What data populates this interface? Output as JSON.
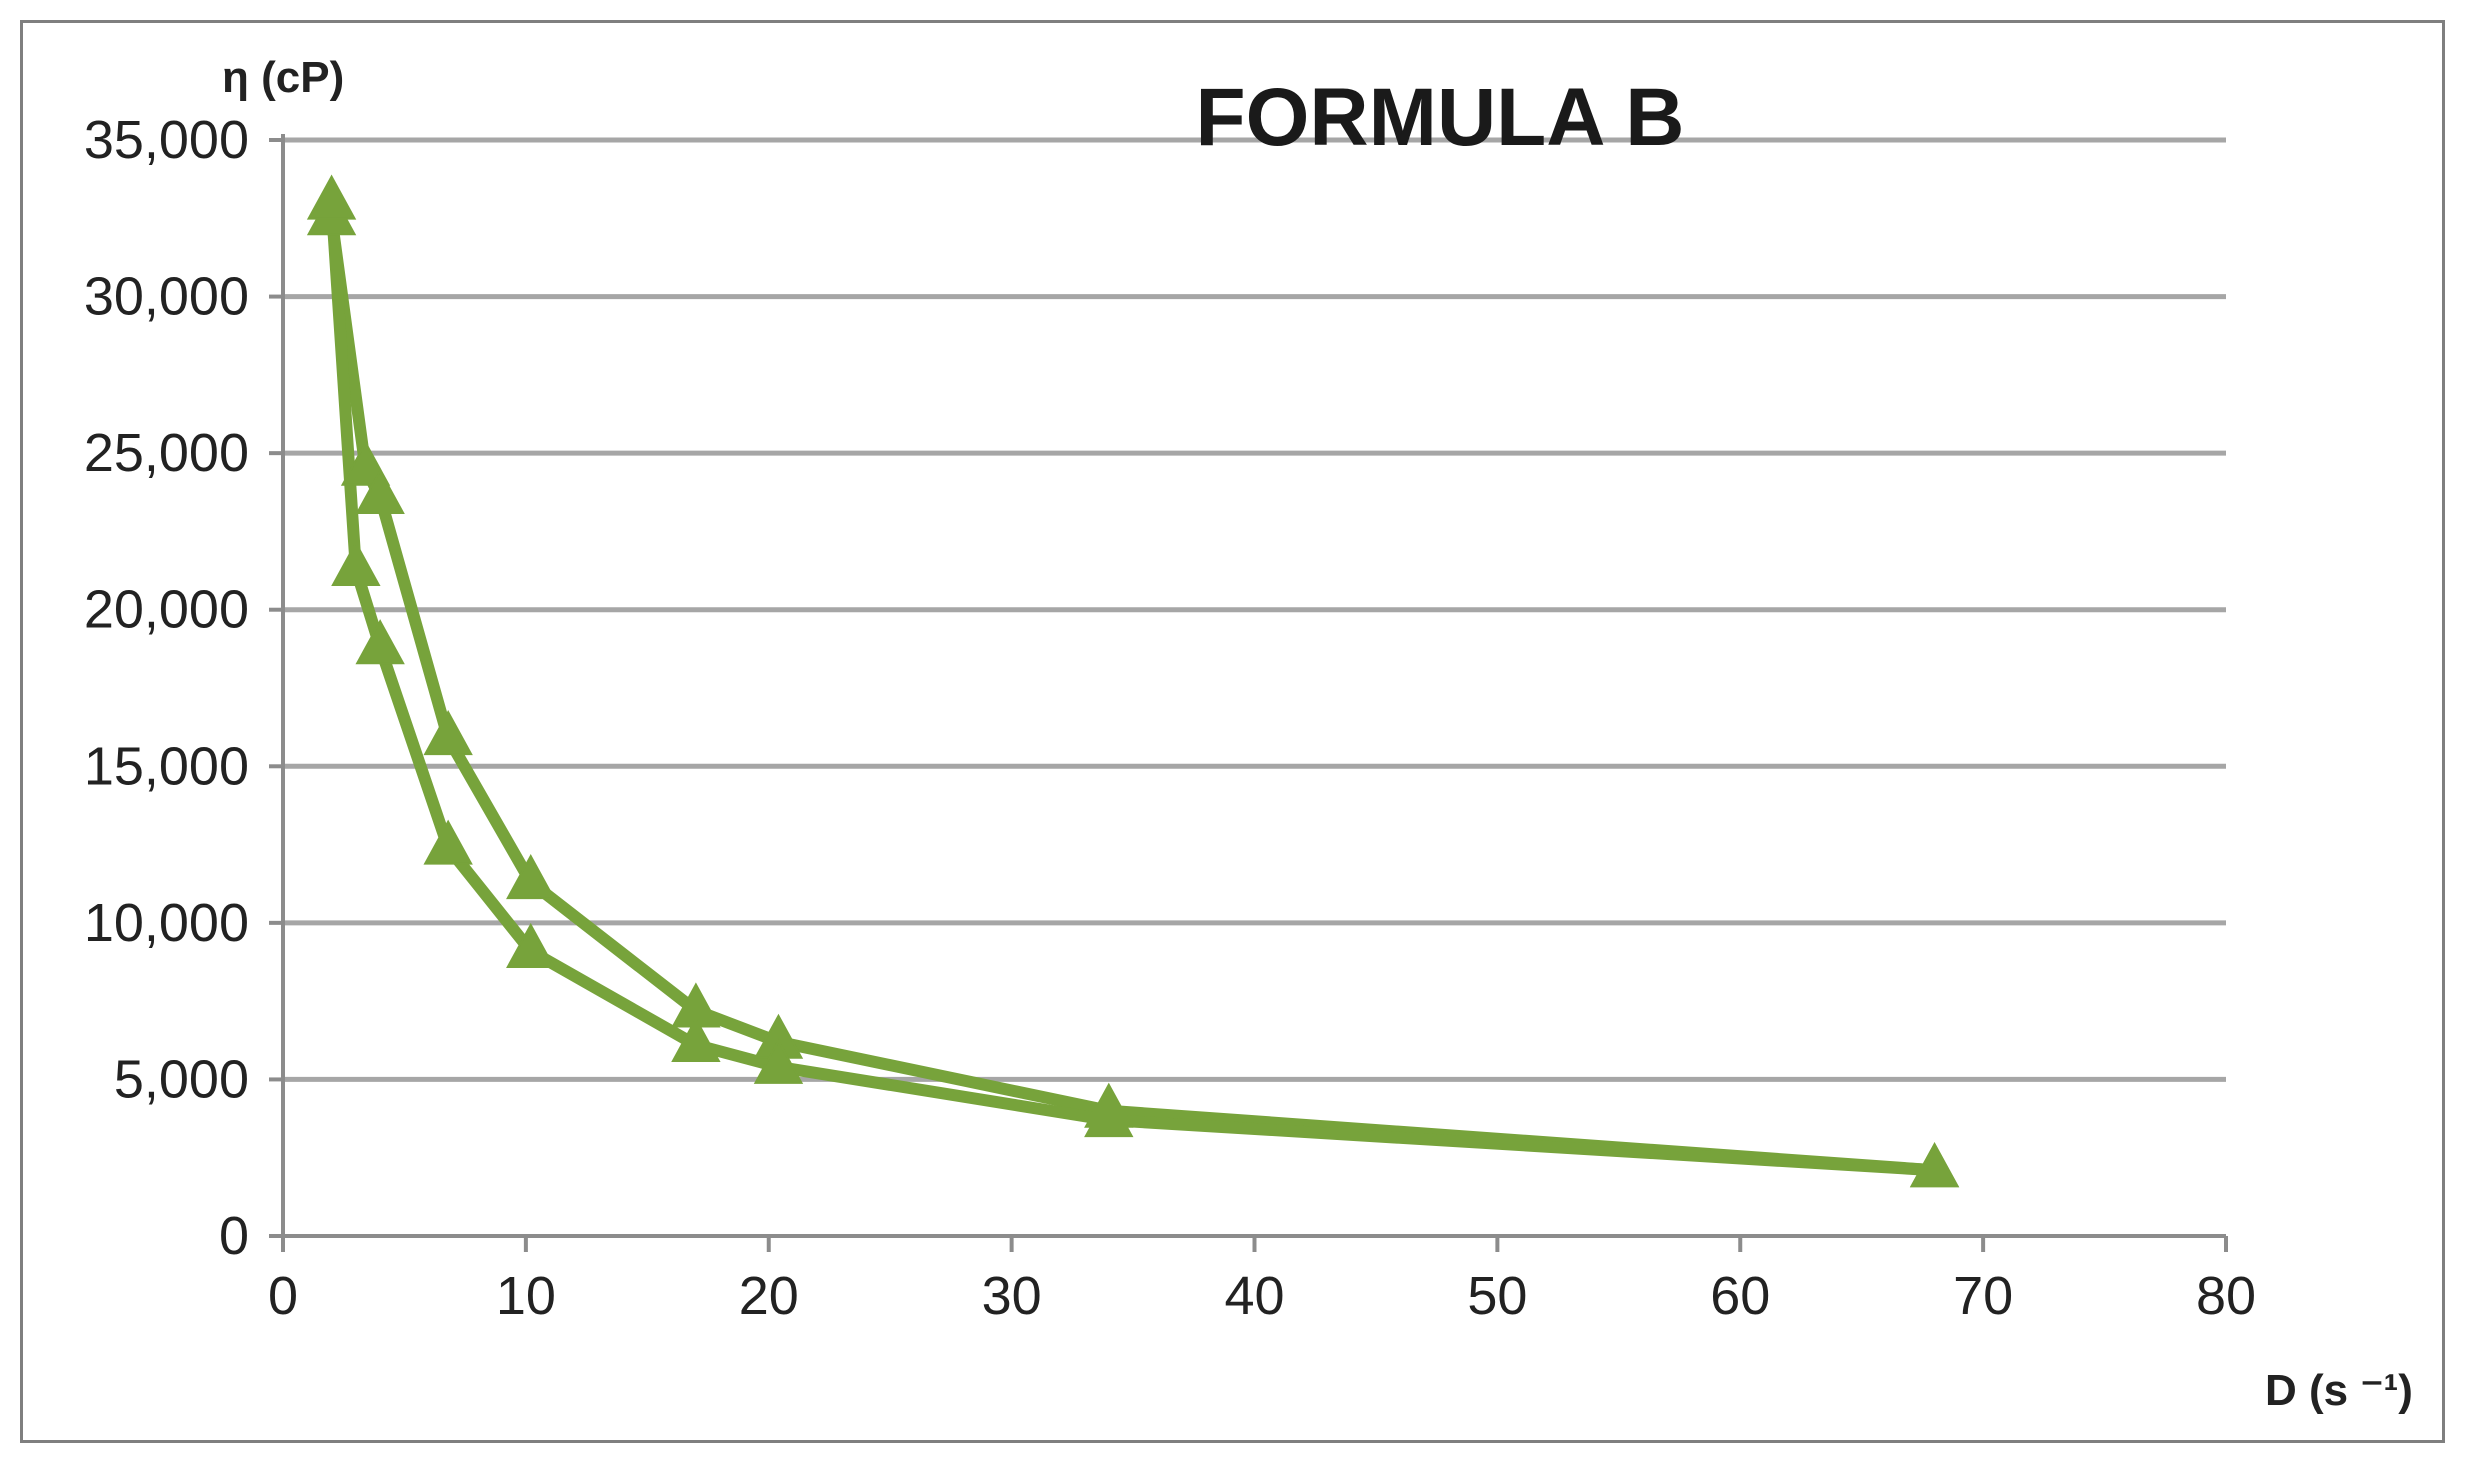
{
  "chart_data": {
    "type": "line",
    "title": "FORMULA B",
    "ylabel": "η (cP)",
    "xlabel": "D (s ⁻¹)",
    "xlim": [
      0,
      80
    ],
    "ylim": [
      0,
      35000
    ],
    "x_ticks": [
      0,
      10,
      20,
      30,
      40,
      50,
      60,
      70,
      80
    ],
    "x_tick_labels": [
      "0",
      "10",
      "20",
      "30",
      "40",
      "50",
      "60",
      "70",
      "80"
    ],
    "y_ticks": [
      0,
      5000,
      10000,
      15000,
      20000,
      25000,
      30000,
      35000
    ],
    "y_tick_labels": [
      "0",
      "5,000",
      "10,000",
      "15,000",
      "20,000",
      "25,000",
      "30,000",
      "35,000"
    ],
    "grid": "horizontal",
    "marker": "triangle",
    "colors": {
      "series": "#77a33b",
      "grid": "#a6a6a6",
      "axis": "#8c8c8c"
    },
    "series": [
      {
        "x": [
          2.0,
          3.4,
          4.0,
          6.8,
          10.2,
          17.0,
          20.4,
          34.0,
          68.0
        ],
        "y": [
          32500,
          24500,
          23600,
          15900,
          11300,
          7200,
          6200,
          4000,
          2100
        ]
      },
      {
        "x": [
          2.0,
          3.0,
          4.0,
          6.8,
          10.2,
          17.0,
          20.4,
          34.0,
          68.0
        ],
        "y": [
          33000,
          21300,
          18800,
          12400,
          9100,
          6100,
          5400,
          3700,
          2100
        ]
      }
    ]
  }
}
